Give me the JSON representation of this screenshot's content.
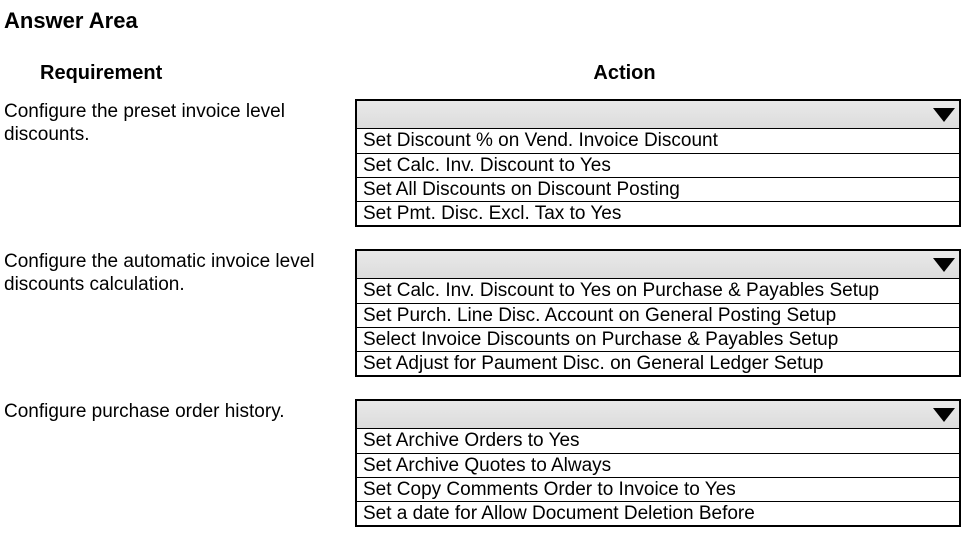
{
  "title": "Answer Area",
  "headers": {
    "requirement": "Requirement",
    "action": "Action"
  },
  "rows": [
    {
      "requirement": "Configure the preset invoice level discounts.",
      "options": [
        "Set Discount % on Vend. Invoice Discount",
        "Set Calc. Inv. Discount to Yes",
        "Set All Discounts on Discount Posting",
        "Set Pmt. Disc. Excl. Tax to Yes"
      ]
    },
    {
      "requirement": "Configure the automatic invoice level discounts calculation.",
      "options": [
        "Set Calc. Inv. Discount to Yes on Purchase & Payables Setup",
        "Set Purch. Line Disc. Account on General Posting Setup",
        "Select Invoice Discounts on Purchase & Payables Setup",
        "Set Adjust for Paument Disc. on General Ledger Setup"
      ]
    },
    {
      "requirement": "Configure purchase order history.",
      "options": [
        "Set Archive Orders to Yes",
        "Set Archive Quotes to Always",
        "Set Copy Comments Order to Invoice to Yes",
        "Set a date for Allow Document Deletion Before"
      ]
    }
  ]
}
